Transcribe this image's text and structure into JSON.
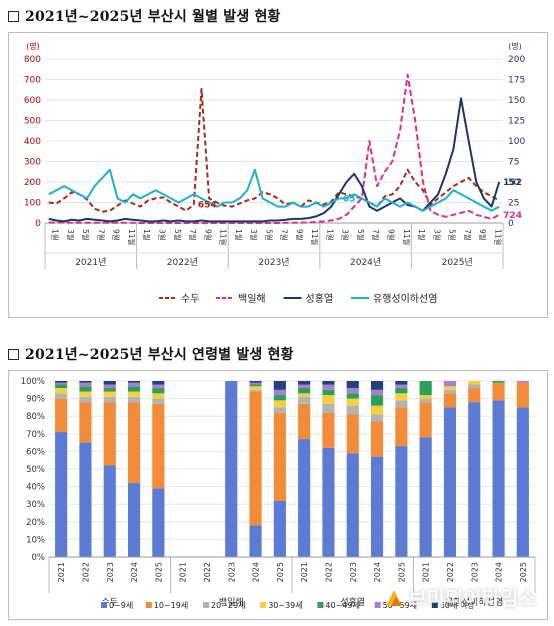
{
  "section1": {
    "title": "2021년~2025년 부산시 월별 발생 현황"
  },
  "section2": {
    "title": "2021년~2025년 부산시 연령별 발생 현황"
  },
  "watermark": {
    "text": "브미디어타임스"
  },
  "chart_data": [
    {
      "type": "line",
      "left_unit": "(명)",
      "right_unit": "(명)",
      "y_left": {
        "min": 0,
        "max": 800,
        "ticks": [
          0,
          100,
          200,
          300,
          400,
          500,
          600,
          700,
          800
        ]
      },
      "y_right": {
        "min": 0,
        "max": 200,
        "ticks": [
          0,
          25,
          50,
          75,
          100,
          125,
          150,
          175,
          200
        ]
      },
      "x_tick_labels": [
        "1월",
        "3월",
        "5월",
        "7월",
        "9월",
        "11월",
        "1월",
        "3월",
        "5월",
        "7월",
        "9월",
        "11월",
        "1월",
        "3월",
        "5월",
        "7월",
        "9월",
        "11월",
        "1월",
        "3월",
        "5월",
        "7월",
        "9월",
        "11월",
        "1월",
        "3월",
        "5월",
        "7월",
        "9월",
        "11월"
      ],
      "years": [
        "2021년",
        "2022년",
        "2023년",
        "2024년",
        "2025년"
      ],
      "annotations": [
        {
          "text": "654",
          "series": "수두",
          "index": 19
        },
        {
          "text": "65",
          "series": "유행성이하선염",
          "index": 38
        },
        {
          "text": "724",
          "series": "백일해",
          "index": 65
        },
        {
          "text": "152",
          "series": "성홍열",
          "index": 98
        }
      ],
      "series": [
        {
          "name": "수두",
          "axis": "left",
          "color": "#a52a1a",
          "dash": "5,3",
          "values": [
            100,
            95,
            120,
            150,
            140,
            115,
            70,
            55,
            60,
            85,
            110,
            95,
            80,
            110,
            120,
            125,
            100,
            80,
            60,
            90,
            654,
            120,
            100,
            85,
            80,
            95,
            110,
            120,
            150,
            140,
            120,
            90,
            100,
            80,
            110,
            100,
            90,
            105,
            150,
            140,
            130,
            120,
            100,
            80,
            130,
            140,
            180,
            260,
            200,
            160,
            90,
            120,
            150,
            180,
            200,
            220,
            180,
            150,
            130,
            110
          ]
        },
        {
          "name": "백일해",
          "axis": "left",
          "color": "#d6338a",
          "dash": "6,3",
          "values": [
            2,
            2,
            2,
            1,
            1,
            1,
            1,
            1,
            1,
            1,
            1,
            1,
            0,
            0,
            0,
            0,
            0,
            0,
            0,
            0,
            0,
            0,
            0,
            0,
            0,
            0,
            0,
            0,
            0,
            0,
            0,
            1,
            1,
            2,
            3,
            5,
            8,
            12,
            20,
            40,
            80,
            120,
            400,
            180,
            250,
            300,
            450,
            724,
            500,
            200,
            60,
            40,
            30,
            40,
            50,
            60,
            40,
            30,
            20,
            40
          ]
        },
        {
          "name": "성홍열",
          "axis": "right",
          "color": "#1f3566",
          "dash": "",
          "values": [
            5,
            3,
            2,
            4,
            3,
            5,
            4,
            3,
            2,
            3,
            5,
            4,
            3,
            2,
            2,
            3,
            2,
            3,
            2,
            2,
            3,
            2,
            2,
            2,
            2,
            2,
            2,
            2,
            2,
            3,
            3,
            4,
            5,
            5,
            6,
            8,
            12,
            20,
            35,
            50,
            60,
            45,
            20,
            15,
            20,
            25,
            30,
            22,
            20,
            15,
            25,
            35,
            60,
            90,
            152,
            100,
            50,
            30,
            20,
            50
          ]
        },
        {
          "name": "유행성이하선염",
          "axis": "right",
          "color": "#1fb0d0",
          "dash": "",
          "values": [
            35,
            40,
            45,
            40,
            35,
            30,
            45,
            55,
            65,
            30,
            25,
            35,
            30,
            35,
            40,
            35,
            30,
            25,
            30,
            35,
            30,
            25,
            20,
            25,
            25,
            30,
            40,
            65,
            30,
            25,
            20,
            20,
            25,
            20,
            20,
            25,
            20,
            25,
            30,
            30,
            35,
            30,
            25,
            20,
            30,
            25,
            20,
            25,
            20,
            15,
            20,
            25,
            30,
            40,
            35,
            30,
            25,
            20,
            15,
            20
          ]
        }
      ],
      "legend": [
        "수두",
        "백일해",
        "성홍열",
        "유행성이하선염"
      ]
    },
    {
      "type": "bar",
      "stacked": true,
      "y_range": [
        0,
        100
      ],
      "y_ticks": [
        "0%",
        "10%",
        "20%",
        "30%",
        "40%",
        "50%",
        "60%",
        "70%",
        "80%",
        "90%",
        "100%"
      ],
      "groups": [
        "수두",
        "백일해",
        "성홍열",
        "유행성이하선염"
      ],
      "categories": [
        "2021",
        "2022",
        "2023",
        "2024",
        "2025",
        "2021",
        "2022",
        "2023",
        "2024",
        "2025",
        "2021",
        "2022",
        "2023",
        "2024",
        "2025",
        "2021",
        "2022",
        "2023",
        "2024",
        "2025"
      ],
      "series": [
        {
          "name": "0~9세",
          "color": "#5b7bd5",
          "values": [
            71,
            65,
            52,
            42,
            39,
            0,
            0,
            100,
            18,
            32,
            67,
            62,
            59,
            57,
            63,
            68,
            85,
            88,
            89,
            85
          ]
        },
        {
          "name": "10~19세",
          "color": "#f28b3a",
          "values": [
            19,
            23,
            36,
            46,
            48,
            0,
            0,
            0,
            76,
            50,
            20,
            20,
            22,
            20,
            22,
            20,
            8,
            8,
            10,
            14
          ]
        },
        {
          "name": "20~29세",
          "color": "#b3b3b3",
          "values": [
            3,
            3,
            3,
            3,
            3,
            0,
            0,
            0,
            1,
            3,
            4,
            5,
            5,
            4,
            4,
            2,
            2,
            2,
            0,
            0
          ]
        },
        {
          "name": "30~39세",
          "color": "#f4d03f",
          "values": [
            3,
            3,
            3,
            3,
            3,
            0,
            0,
            0,
            2,
            4,
            2,
            5,
            4,
            5,
            4,
            2,
            2,
            2,
            0,
            0
          ]
        },
        {
          "name": "40~49세",
          "color": "#2e9e5b",
          "values": [
            2,
            3,
            2,
            3,
            3,
            0,
            0,
            0,
            1,
            3,
            3,
            3,
            3,
            6,
            3,
            8,
            0,
            0,
            1,
            0
          ]
        },
        {
          "name": "50~59세",
          "color": "#a87fd6",
          "values": [
            1,
            2,
            2,
            2,
            2,
            0,
            0,
            0,
            1,
            3,
            2,
            3,
            3,
            3,
            2,
            0,
            3,
            0,
            0,
            1
          ]
        },
        {
          "name": "60세 이상",
          "color": "#22407a",
          "values": [
            1,
            1,
            2,
            1,
            2,
            0,
            0,
            0,
            1,
            5,
            2,
            2,
            4,
            5,
            2,
            0,
            0,
            0,
            0,
            0
          ]
        }
      ],
      "legend": [
        "0~9세",
        "10~19세",
        "20~29세",
        "30~39세",
        "40~49세",
        "50~59세",
        "60세 이상"
      ]
    }
  ]
}
